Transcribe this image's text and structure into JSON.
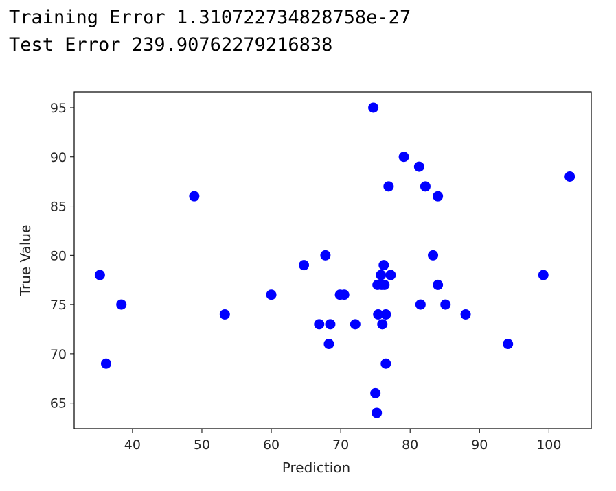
{
  "output": {
    "training_error": "Training Error 1.310722734828758e-27",
    "test_error": "Test Error 239.90762279216838"
  },
  "chart_data": {
    "type": "scatter",
    "xlabel": "Prediction",
    "ylabel": "True Value",
    "xlim": [
      31.6,
      106.1
    ],
    "ylim": [
      62.4,
      96.6
    ],
    "xticks": [
      40,
      50,
      60,
      70,
      80,
      90,
      100
    ],
    "yticks": [
      65,
      70,
      75,
      80,
      85,
      90,
      95
    ],
    "marker_color": "#0000ff",
    "points": [
      {
        "x": 35.3,
        "y": 78
      },
      {
        "x": 36.2,
        "y": 69
      },
      {
        "x": 38.4,
        "y": 75
      },
      {
        "x": 48.9,
        "y": 86
      },
      {
        "x": 53.3,
        "y": 74
      },
      {
        "x": 60.0,
        "y": 76
      },
      {
        "x": 64.7,
        "y": 79
      },
      {
        "x": 66.9,
        "y": 73
      },
      {
        "x": 67.8,
        "y": 80
      },
      {
        "x": 68.3,
        "y": 71
      },
      {
        "x": 68.5,
        "y": 73
      },
      {
        "x": 69.9,
        "y": 76
      },
      {
        "x": 70.5,
        "y": 76
      },
      {
        "x": 72.1,
        "y": 73
      },
      {
        "x": 74.7,
        "y": 95
      },
      {
        "x": 75.0,
        "y": 66
      },
      {
        "x": 75.2,
        "y": 64
      },
      {
        "x": 75.3,
        "y": 77
      },
      {
        "x": 75.4,
        "y": 74
      },
      {
        "x": 75.8,
        "y": 78
      },
      {
        "x": 75.9,
        "y": 77
      },
      {
        "x": 76.0,
        "y": 73
      },
      {
        "x": 76.2,
        "y": 79
      },
      {
        "x": 76.3,
        "y": 77
      },
      {
        "x": 76.5,
        "y": 74
      },
      {
        "x": 76.5,
        "y": 69
      },
      {
        "x": 76.9,
        "y": 87
      },
      {
        "x": 77.2,
        "y": 78
      },
      {
        "x": 79.1,
        "y": 90
      },
      {
        "x": 81.3,
        "y": 89
      },
      {
        "x": 81.5,
        "y": 75
      },
      {
        "x": 82.2,
        "y": 87
      },
      {
        "x": 83.3,
        "y": 80
      },
      {
        "x": 84.0,
        "y": 86
      },
      {
        "x": 84.0,
        "y": 77
      },
      {
        "x": 85.1,
        "y": 75
      },
      {
        "x": 88.0,
        "y": 74
      },
      {
        "x": 94.1,
        "y": 71
      },
      {
        "x": 99.2,
        "y": 78
      },
      {
        "x": 103.0,
        "y": 88
      }
    ]
  }
}
